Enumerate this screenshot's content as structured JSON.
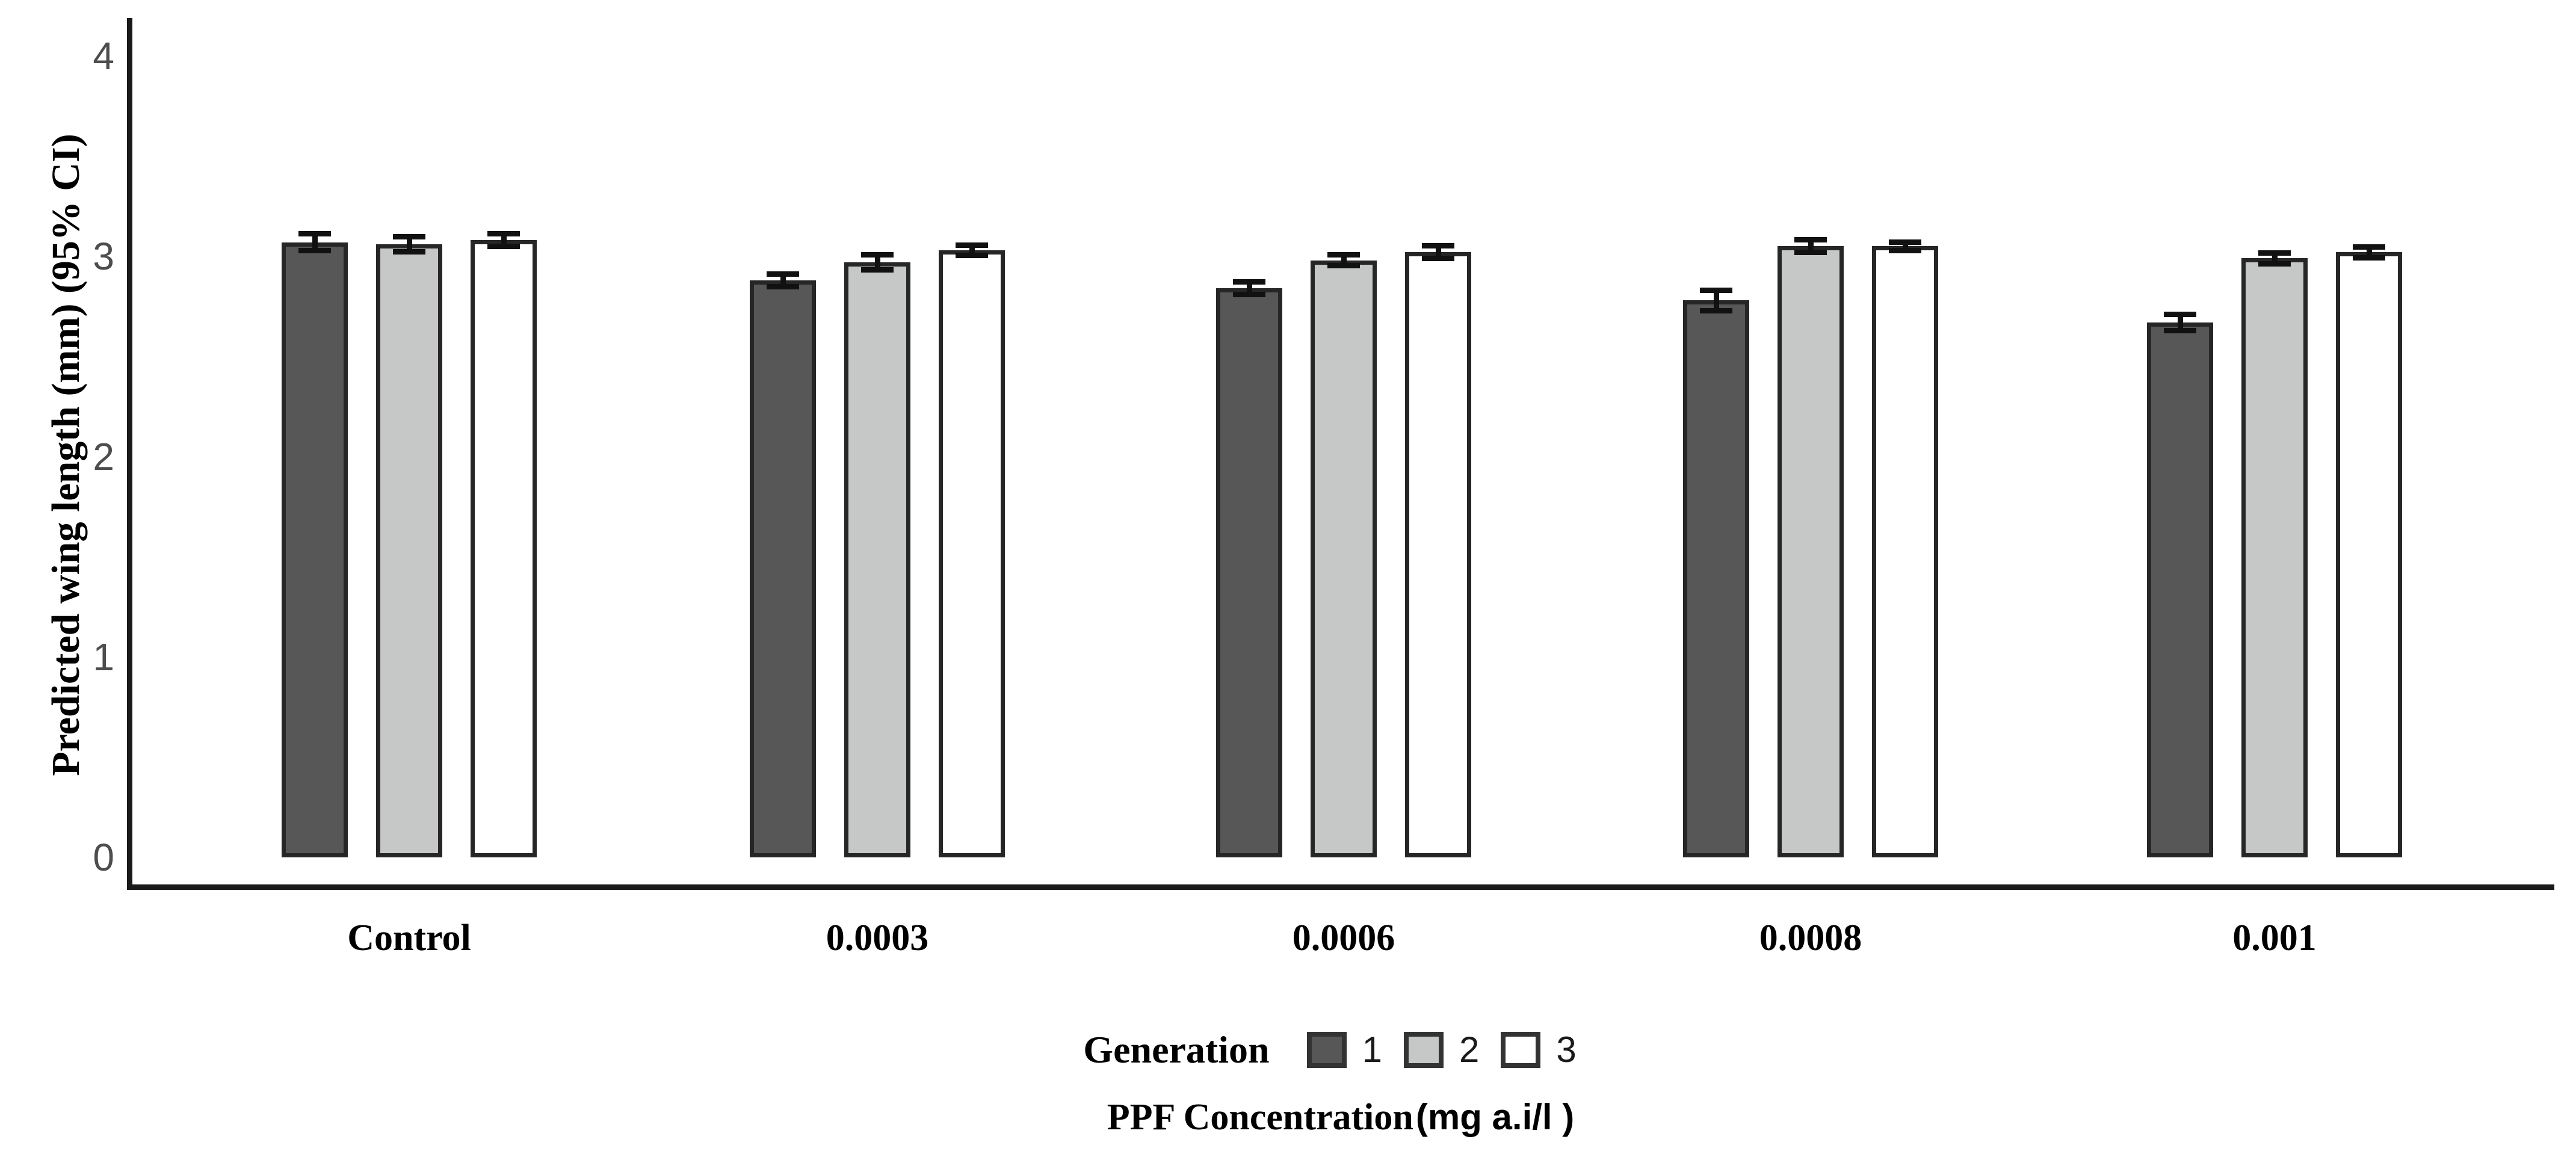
{
  "chart_data": {
    "type": "bar",
    "title": "",
    "ylabel": "Predicted wing length (mm) (95% CI)",
    "xlabel": {
      "serif_part": "PPF Concentration",
      "sans_part": "(mg a.i/l )"
    },
    "categories": [
      "Control",
      "0.0003",
      "0.0006",
      "0.0008",
      "0.001"
    ],
    "yticks": [
      0,
      1,
      2,
      3,
      4
    ],
    "ylim": [
      0,
      4.2
    ],
    "grid": false,
    "legend": {
      "title": "Generation",
      "position": "bottom-center",
      "entries": [
        {
          "label": "1",
          "fill": "#575757"
        },
        {
          "label": "2",
          "fill": "#c6c7c7"
        },
        {
          "label": "3",
          "fill": "#ffffff"
        }
      ]
    },
    "series": [
      {
        "name": "1",
        "fill": "#575757",
        "values": [
          3.07,
          2.88,
          2.84,
          2.78,
          2.67
        ],
        "ci_halfwidth": [
          0.055,
          0.045,
          0.045,
          0.065,
          0.055
        ]
      },
      {
        "name": "2",
        "fill": "#c6c7c7",
        "values": [
          3.06,
          2.97,
          2.98,
          3.05,
          2.99
        ],
        "ci_halfwidth": [
          0.05,
          0.05,
          0.04,
          0.045,
          0.04
        ]
      },
      {
        "name": "3",
        "fill": "#ffffff",
        "values": [
          3.08,
          3.03,
          3.02,
          3.05,
          3.02
        ],
        "ci_halfwidth": [
          0.045,
          0.04,
          0.045,
          0.035,
          0.04
        ]
      }
    ],
    "error_bars": "95% CI, black whiskers with caps"
  },
  "colors": {
    "bar_border": "#262626",
    "axis": "#1a1a1a",
    "tick_text": "#4d4d4d",
    "text": "#000000",
    "background": "#ffffff"
  }
}
